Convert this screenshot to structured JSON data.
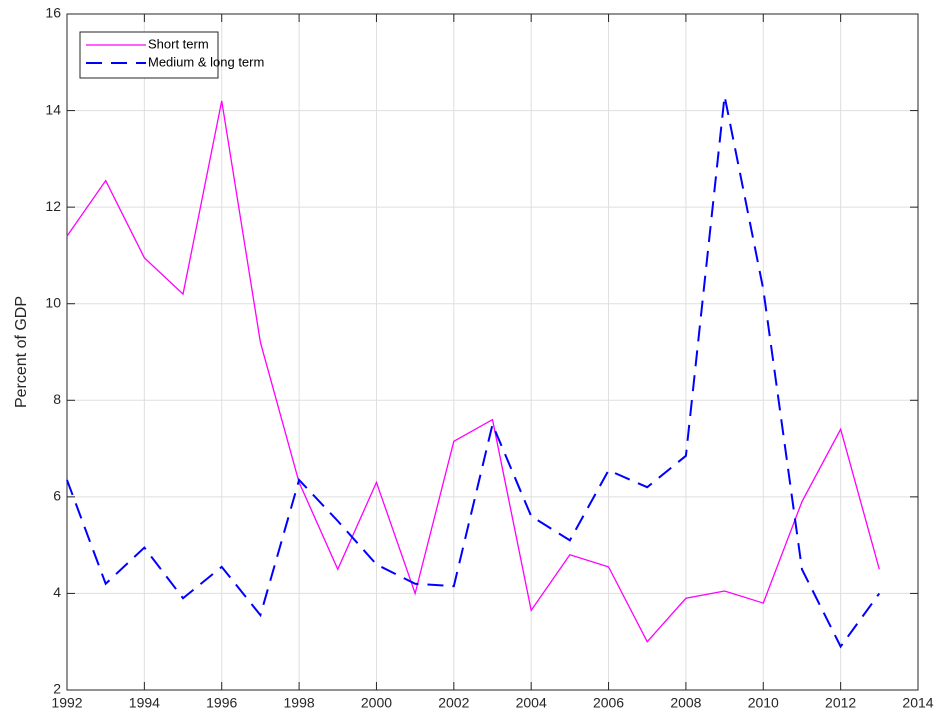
{
  "chart_data": {
    "type": "line",
    "y_label": "Percent of GDP",
    "x": [
      1992,
      1993,
      1994,
      1995,
      1996,
      1997,
      1998,
      1999,
      2000,
      2001,
      2002,
      2003,
      2004,
      2005,
      2006,
      2007,
      2008,
      2009,
      2010,
      2011,
      2012,
      2013
    ],
    "series": [
      {
        "name": "Short term",
        "color": "#ff00ff",
        "line_style": "solid",
        "values": [
          11.4,
          12.55,
          10.95,
          10.2,
          14.2,
          9.2,
          6.3,
          4.5,
          6.3,
          4.0,
          7.15,
          7.6,
          3.65,
          4.8,
          4.55,
          3.0,
          3.9,
          4.05,
          3.8,
          5.9,
          7.4,
          4.5
        ]
      },
      {
        "name": "Medium & long term",
        "color": "#0000ff",
        "line_style": "dashed",
        "values": [
          6.35,
          4.2,
          4.95,
          3.9,
          4.55,
          3.55,
          6.35,
          5.5,
          4.6,
          4.2,
          4.15,
          7.5,
          5.6,
          5.1,
          6.55,
          6.2,
          6.85,
          14.3,
          10.3,
          4.5,
          2.9,
          4.0
        ]
      }
    ],
    "xlim": [
      1992,
      2014
    ],
    "xticks": [
      1992,
      1994,
      1996,
      1998,
      2000,
      2002,
      2004,
      2006,
      2008,
      2010,
      2012,
      2014
    ],
    "ylim": [
      2,
      16
    ],
    "yticks": [
      2,
      4,
      6,
      8,
      10,
      12,
      14,
      16
    ],
    "grid": true,
    "legend": "upper left"
  }
}
